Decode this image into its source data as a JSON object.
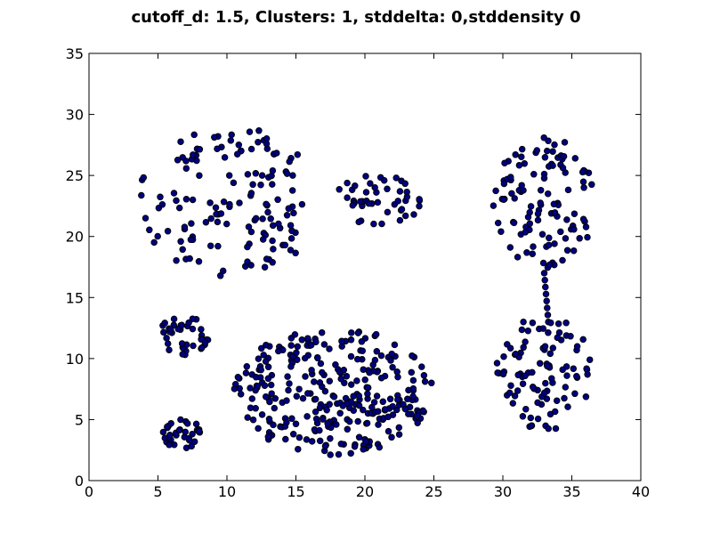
{
  "chart_data": {
    "type": "scatter",
    "title": "cutoff_d: 1.5, Clusters: 1, stddelta: 0,stddensity 0",
    "xlabel": "",
    "ylabel": "",
    "xlim": [
      0,
      40
    ],
    "ylim": [
      0,
      35
    ],
    "xticks": [
      0,
      5,
      10,
      15,
      20,
      25,
      30,
      35,
      40
    ],
    "yticks": [
      0,
      5,
      10,
      15,
      20,
      25,
      30,
      35
    ],
    "grid": false,
    "legend": null,
    "marker_color": "#000080",
    "marker_edge_color": "#000000",
    "clusters": [
      {
        "name": "",
        "shape": "half-disk",
        "cx": 10.5,
        "cy": 22.7,
        "rx": 7.0,
        "ry": 6.2,
        "count": 140,
        "x_min": 3.5,
        "x_max": 15.5
      },
      {
        "name": "",
        "shape": "ellipse",
        "cx": 21.0,
        "cy": 23.0,
        "rx": 3.2,
        "ry": 2.1,
        "count": 45
      },
      {
        "name": "",
        "shape": "ellipse",
        "cx": 33.0,
        "cy": 22.8,
        "rx": 3.7,
        "ry": 5.4,
        "count": 110
      },
      {
        "name": "",
        "shape": "line",
        "x1": 33.0,
        "y1": 17.0,
        "x2": 33.3,
        "y2": 13.0,
        "count": 8
      },
      {
        "name": "",
        "shape": "ellipse",
        "cx": 6.9,
        "cy": 11.9,
        "rx": 1.8,
        "ry": 1.7,
        "count": 38
      },
      {
        "name": "",
        "shape": "ellipse",
        "cx": 17.7,
        "cy": 7.3,
        "rx": 7.2,
        "ry": 5.2,
        "count": 300
      },
      {
        "name": "",
        "shape": "ellipse",
        "cx": 33.0,
        "cy": 8.8,
        "rx": 3.5,
        "ry": 4.7,
        "count": 95
      },
      {
        "name": "",
        "shape": "ellipse",
        "cx": 6.8,
        "cy": 3.6,
        "rx": 1.5,
        "ry": 1.4,
        "count": 33
      }
    ]
  }
}
